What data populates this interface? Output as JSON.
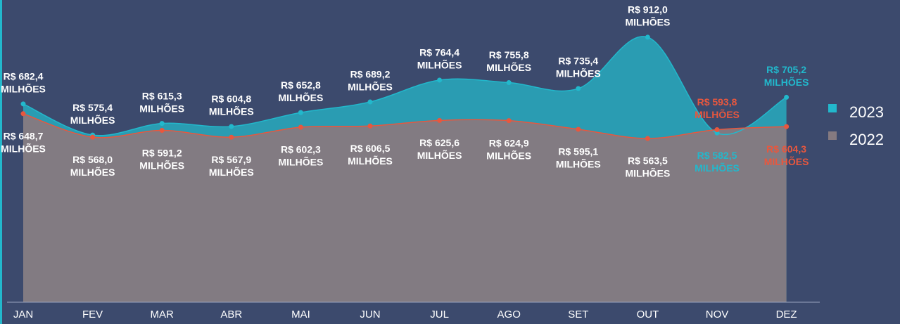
{
  "chart_data": {
    "type": "area",
    "categories": [
      "JAN",
      "FEV",
      "MAR",
      "ABR",
      "MAI",
      "JUN",
      "JUL",
      "AGO",
      "SET",
      "OUT",
      "NOV",
      "DEZ"
    ],
    "value_unit": "MILHÕES",
    "series": [
      {
        "name": "2023",
        "color": "#22b8cc",
        "fill": "#2a9cb2",
        "values": [
          682.4,
          575.4,
          615.3,
          604.8,
          652.8,
          689.2,
          764.4,
          755.8,
          735.4,
          912.0,
          582.5,
          705.2
        ],
        "value_labels": [
          "R$ 682,4",
          "R$ 575,4",
          "R$ 615,3",
          "R$ 604,8",
          "R$ 652,8",
          "R$ 689,2",
          "R$ 764,4",
          "R$ 755,8",
          "R$ 735,4",
          "R$ 912,0",
          "R$ 582,5",
          "R$ 705,2"
        ]
      },
      {
        "name": "2022",
        "color": "#e8573e",
        "fill": "#857a80",
        "values": [
          648.7,
          568.0,
          591.2,
          567.9,
          602.3,
          606.5,
          625.6,
          624.9,
          595.1,
          563.5,
          593.8,
          604.3
        ],
        "value_labels": [
          "R$ 648,7",
          "R$ 568,0",
          "R$ 591,2",
          "R$ 567,9",
          "R$ 602,3",
          "R$ 606,5",
          "R$ 625,6",
          "R$ 624,9",
          "R$ 595,1",
          "R$ 563,5",
          "R$ 593,8",
          "R$ 604,3"
        ]
      }
    ],
    "ylim": [
      0,
      1040
    ]
  }
}
